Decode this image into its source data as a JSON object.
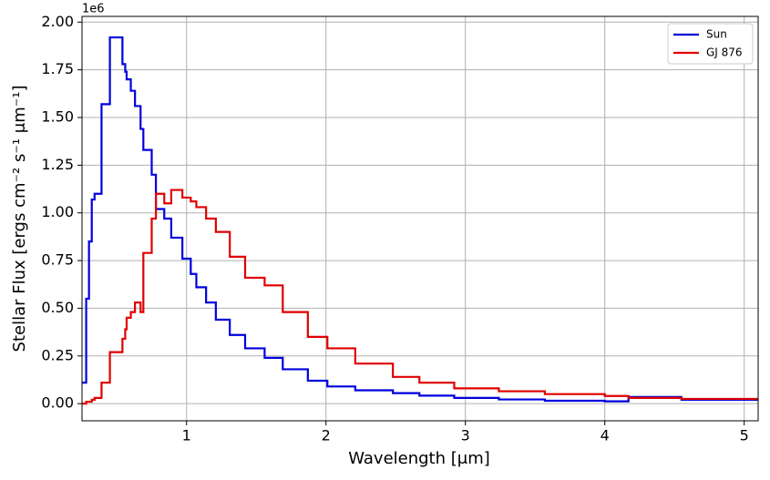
{
  "chart_data": {
    "type": "line",
    "drawstyle": "steps-post",
    "x_label": "Wavelength [μm]",
    "y_label": "Stellar Flux [ergs cm⁻² s⁻¹ μm⁻¹]",
    "y_offset_label": "1e6",
    "x": [
      0.25,
      0.28,
      0.3,
      0.32,
      0.34,
      0.35,
      0.39,
      0.45,
      0.54,
      0.56,
      0.57,
      0.6,
      0.61,
      0.63,
      0.67,
      0.69,
      0.75,
      0.78,
      0.84,
      0.89,
      0.97,
      1.03,
      1.07,
      1.14,
      1.21,
      1.31,
      1.42,
      1.56,
      1.69,
      1.87,
      2.01,
      2.21,
      2.48,
      2.67,
      2.92,
      3.24,
      3.57,
      4.0,
      4.17,
      4.55,
      5.1
    ],
    "series": [
      {
        "name": "Sun",
        "color": "#0000dd",
        "values": [
          0.11,
          0.55,
          0.85,
          1.07,
          1.1,
          1.1,
          1.57,
          1.92,
          1.78,
          1.74,
          1.7,
          1.64,
          1.64,
          1.56,
          1.44,
          1.33,
          1.2,
          1.02,
          0.97,
          0.87,
          0.76,
          0.68,
          0.61,
          0.53,
          0.44,
          0.36,
          0.29,
          0.24,
          0.18,
          0.12,
          0.09,
          0.07,
          0.055,
          0.042,
          0.03,
          0.022,
          0.015,
          0.012,
          0.035,
          0.02,
          0.02
        ]
      },
      {
        "name": "GJ 876",
        "color": "#e00000",
        "values": [
          0.0,
          0.01,
          0.01,
          0.02,
          0.03,
          0.03,
          0.11,
          0.27,
          0.34,
          0.39,
          0.45,
          0.48,
          0.48,
          0.53,
          0.48,
          0.79,
          0.97,
          1.1,
          1.05,
          1.12,
          1.08,
          1.06,
          1.03,
          0.97,
          0.9,
          0.77,
          0.66,
          0.62,
          0.48,
          0.35,
          0.29,
          0.21,
          0.14,
          0.11,
          0.08,
          0.065,
          0.05,
          0.04,
          0.03,
          0.025,
          0.025
        ]
      }
    ],
    "xlim": [
      0.25,
      5.1
    ],
    "xticks": [
      1,
      2,
      3,
      4,
      5
    ],
    "ylim": [
      -0.09,
      2.03
    ],
    "yticks": [
      {
        "value": 0,
        "label": "0.00"
      },
      {
        "value": 0.25,
        "label": "0.25"
      },
      {
        "value": 0.5,
        "label": "0.50"
      },
      {
        "value": 0.75,
        "label": "0.75"
      },
      {
        "value": 1,
        "label": "1.00"
      },
      {
        "value": 1.25,
        "label": "1.25"
      },
      {
        "value": 1.5,
        "label": "1.50"
      },
      {
        "value": 1.75,
        "label": "1.75"
      },
      {
        "value": 2,
        "label": "2.00"
      }
    ],
    "grid": true,
    "legend": "upper right"
  }
}
